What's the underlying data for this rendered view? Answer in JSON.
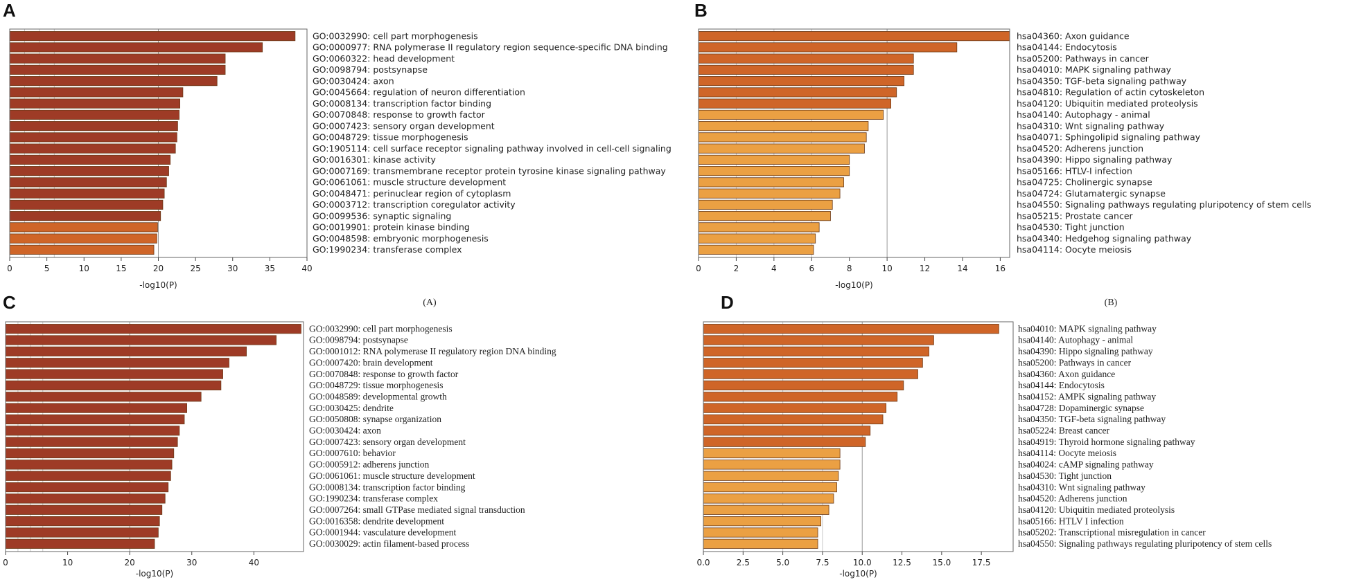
{
  "figure": {
    "colors": {
      "dark": "#9e3b26",
      "mid": "#cf6528",
      "light": "#eba043"
    },
    "captions": [
      "(A)",
      "(B)"
    ]
  },
  "chart_data": [
    {
      "type": "bar",
      "panel": "A",
      "xlabel": "-log10(P)",
      "xlim": [
        0,
        40
      ],
      "ticks": [
        0,
        5,
        10,
        15,
        20,
        25,
        30,
        35,
        40
      ],
      "gridlines": [
        2,
        4,
        6,
        20
      ],
      "categories": [
        "GO:0032990: cell part morphogenesis",
        "GO:0000977: RNA polymerase II regulatory region sequence-specific DNA binding",
        "GO:0060322: head development",
        "GO:0098794: postsynapse",
        "GO:0030424: axon",
        "GO:0045664: regulation of neuron differentiation",
        "GO:0008134: transcription factor binding",
        "GO:0070848: response to growth factor",
        "GO:0007423: sensory organ development",
        "GO:0048729: tissue morphogenesis",
        "GO:1905114: cell surface receptor signaling pathway involved in cell-cell signaling",
        "GO:0016301: kinase activity",
        "GO:0007169: transmembrane receptor protein tyrosine kinase signaling pathway",
        "GO:0061061: muscle structure development",
        "GO:0048471: perinuclear region of cytoplasm",
        "GO:0003712: transcription coregulator activity",
        "GO:0099536: synaptic signaling",
        "GO:0019901: protein kinase binding",
        "GO:0048598: embryonic morphogenesis",
        "GO:1990234: transferase complex"
      ],
      "values": [
        38.4,
        34.0,
        29.0,
        29.0,
        27.9,
        23.3,
        22.9,
        22.8,
        22.6,
        22.5,
        22.3,
        21.6,
        21.4,
        21.1,
        20.8,
        20.6,
        20.3,
        19.9,
        19.8,
        19.4
      ],
      "shades": [
        "dark",
        "dark",
        "dark",
        "dark",
        "dark",
        "dark",
        "dark",
        "dark",
        "dark",
        "dark",
        "dark",
        "dark",
        "dark",
        "dark",
        "dark",
        "dark",
        "dark",
        "mid",
        "mid",
        "mid"
      ]
    },
    {
      "type": "bar",
      "panel": "B",
      "xlabel": "-log10(P)",
      "xlim": [
        0,
        16.5
      ],
      "ticks": [
        0,
        2,
        4,
        6,
        8,
        10,
        12,
        14,
        16
      ],
      "gridlines": [
        2,
        4,
        6,
        10
      ],
      "categories": [
        "hsa04360: Axon guidance",
        "hsa04144: Endocytosis",
        "hsa05200: Pathways in cancer",
        "hsa04010: MAPK signaling pathway",
        "hsa04350: TGF-beta signaling pathway",
        "hsa04810: Regulation of actin cytoskeleton",
        "hsa04120: Ubiquitin mediated proteolysis",
        "hsa04140: Autophagy - animal",
        "hsa04310: Wnt signaling pathway",
        "hsa04071: Sphingolipid signaling pathway",
        "hsa04520: Adherens junction",
        "hsa04390: Hippo signaling pathway",
        "hsa05166: HTLV-I infection",
        "hsa04725: Cholinergic synapse",
        "hsa04724: Glutamatergic synapse",
        "hsa04550: Signaling pathways regulating pluripotency of stem cells",
        "hsa05215: Prostate cancer",
        "hsa04530: Tight junction",
        "hsa04340: Hedgehog signaling pathway",
        "hsa04114: Oocyte meiosis"
      ],
      "values": [
        16.5,
        13.7,
        11.4,
        11.4,
        10.9,
        10.5,
        10.2,
        9.8,
        9.0,
        8.9,
        8.8,
        8.0,
        8.0,
        7.7,
        7.5,
        7.1,
        7.0,
        6.4,
        6.2,
        6.1
      ],
      "shades": [
        "mid",
        "mid",
        "mid",
        "mid",
        "mid",
        "mid",
        "mid",
        "light",
        "light",
        "light",
        "light",
        "light",
        "light",
        "light",
        "light",
        "light",
        "light",
        "light",
        "light",
        "light"
      ]
    },
    {
      "type": "bar",
      "panel": "C",
      "xlabel": "-log10(P)",
      "xlim": [
        0,
        48
      ],
      "ticks": [
        0,
        10,
        20,
        30,
        40
      ],
      "gridlines": [
        2,
        4,
        6,
        20
      ],
      "categories": [
        "GO:0032990: cell part morphogenesis",
        "GO:0098794: postsynapse",
        "GO:0001012: RNA polymerase II regulatory region DNA binding",
        "GO:0007420: brain development",
        "GO:0070848: response to growth factor",
        "GO:0048729: tissue morphogenesis",
        "GO:0048589: developmental growth",
        "GO:0030425: dendrite",
        "GO:0050808: synapse organization",
        "GO:0030424: axon",
        "GO:0007423: sensory organ development",
        "GO:0007610: behavior",
        "GO:0005912: adherens junction",
        "GO:0061061: muscle structure development",
        "GO:0008134: transcription factor binding",
        "GO:1990234: transferase complex",
        "GO:0007264: small GTPase mediated signal transduction",
        "GO:0016358: dendrite development",
        "GO:0001944: vasculature development",
        "GO:0030029: actin filament-based process"
      ],
      "values": [
        47.6,
        43.6,
        38.8,
        36.0,
        35.0,
        34.7,
        31.5,
        29.2,
        28.8,
        28.0,
        27.7,
        27.1,
        26.8,
        26.6,
        26.2,
        25.7,
        25.2,
        24.8,
        24.6,
        24.0
      ],
      "shades": [
        "dark",
        "dark",
        "dark",
        "dark",
        "dark",
        "dark",
        "dark",
        "dark",
        "dark",
        "dark",
        "dark",
        "dark",
        "dark",
        "dark",
        "dark",
        "dark",
        "dark",
        "dark",
        "dark",
        "dark"
      ]
    },
    {
      "type": "bar",
      "panel": "D",
      "xlabel": "-log10(P)",
      "xlim": [
        0,
        19.5
      ],
      "ticks": [
        0.0,
        2.5,
        5.0,
        7.5,
        10.0,
        12.5,
        15.0,
        17.5
      ],
      "tick_labels": [
        "0.0",
        "2.5",
        "5.0",
        "7.5",
        "10.0",
        "12.5",
        "15.0",
        "17.5"
      ],
      "gridlines": [
        2.5,
        5.0,
        7.5,
        10.0
      ],
      "categories": [
        "hsa04010: MAPK signaling pathway",
        "hsa04140: Autophagy - animal",
        "hsa04390: Hippo signaling pathway",
        "hsa05200: Pathways in cancer",
        "hsa04360: Axon guidance",
        "hsa04144: Endocytosis",
        "hsa04152: AMPK signaling pathway",
        "hsa04728: Dopaminergic synapse",
        "hsa04350: TGF-beta signaling pathway",
        "hsa05224: Breast cancer",
        "hsa04919: Thyroid hormone signaling pathway",
        "hsa04114: Oocyte meiosis",
        "hsa04024: cAMP signaling pathway",
        "hsa04530: Tight junction",
        "hsa04310: Wnt signaling pathway",
        "hsa04520: Adherens junction",
        "hsa04120: Ubiquitin mediated proteolysis",
        "hsa05166: HTLV I infection",
        "hsa05202: Transcriptional misregulation in cancer",
        "hsa04550: Signaling pathways regulating pluripotency of stem cells"
      ],
      "values": [
        18.6,
        14.5,
        14.2,
        13.8,
        13.5,
        12.6,
        12.2,
        11.5,
        11.3,
        10.5,
        10.2,
        8.6,
        8.6,
        8.5,
        8.4,
        8.2,
        7.9,
        7.4,
        7.2,
        7.2
      ],
      "shades": [
        "mid",
        "mid",
        "mid",
        "mid",
        "mid",
        "mid",
        "mid",
        "mid",
        "mid",
        "mid",
        "mid",
        "light",
        "light",
        "light",
        "light",
        "light",
        "light",
        "light",
        "light",
        "light"
      ]
    }
  ]
}
